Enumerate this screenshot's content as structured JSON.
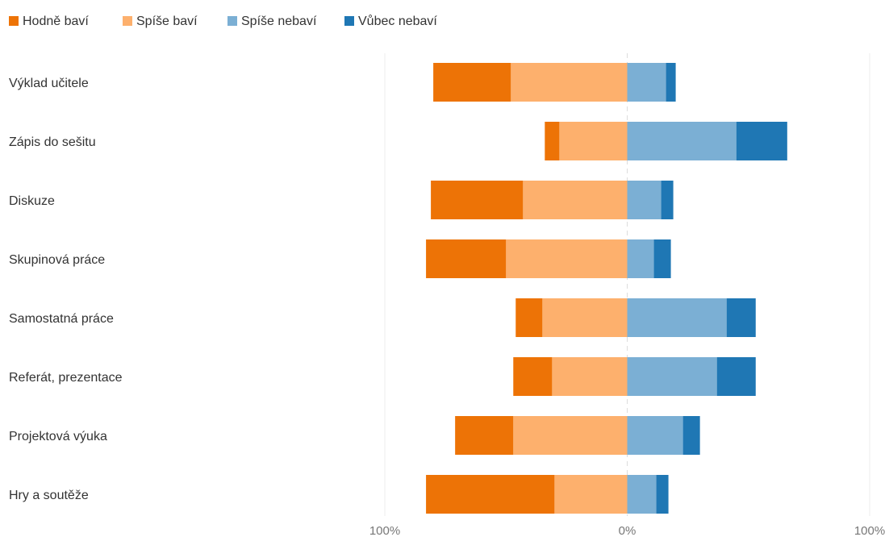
{
  "chart_data": {
    "type": "bar",
    "orientation": "horizontal",
    "stacking": "diverging",
    "categories": [
      "Výklad učitele",
      "Zápis do sešitu",
      "Diskuze",
      "Skupinová práce",
      "Samostatná práce",
      "Referát, prezentace",
      "Projektová výuka",
      "Hry a soutěže"
    ],
    "series": [
      {
        "name": "Hodně baví",
        "side": "left",
        "color": "#ED7306",
        "values": [
          32,
          6,
          38,
          33,
          11,
          16,
          24,
          53
        ]
      },
      {
        "name": "Spíše baví",
        "side": "left",
        "color": "#FDB06D",
        "values": [
          48,
          28,
          43,
          50,
          35,
          31,
          47,
          30
        ]
      },
      {
        "name": "Spíše nebaví",
        "side": "right",
        "color": "#7BAFD4",
        "values": [
          16,
          45,
          14,
          11,
          41,
          37,
          23,
          12
        ]
      },
      {
        "name": "Vůbec nebaví",
        "side": "right",
        "color": "#1F77B4",
        "values": [
          4,
          21,
          5,
          7,
          12,
          16,
          7,
          5
        ]
      }
    ],
    "xlim": [
      -100,
      100
    ],
    "x_ticks": [
      {
        "value": -100,
        "label": "100%"
      },
      {
        "value": 0,
        "label": "0%"
      },
      {
        "value": 100,
        "label": "100%"
      }
    ],
    "grid": true,
    "legend_position": "top-left",
    "title": "",
    "xlabel": "",
    "ylabel": ""
  }
}
